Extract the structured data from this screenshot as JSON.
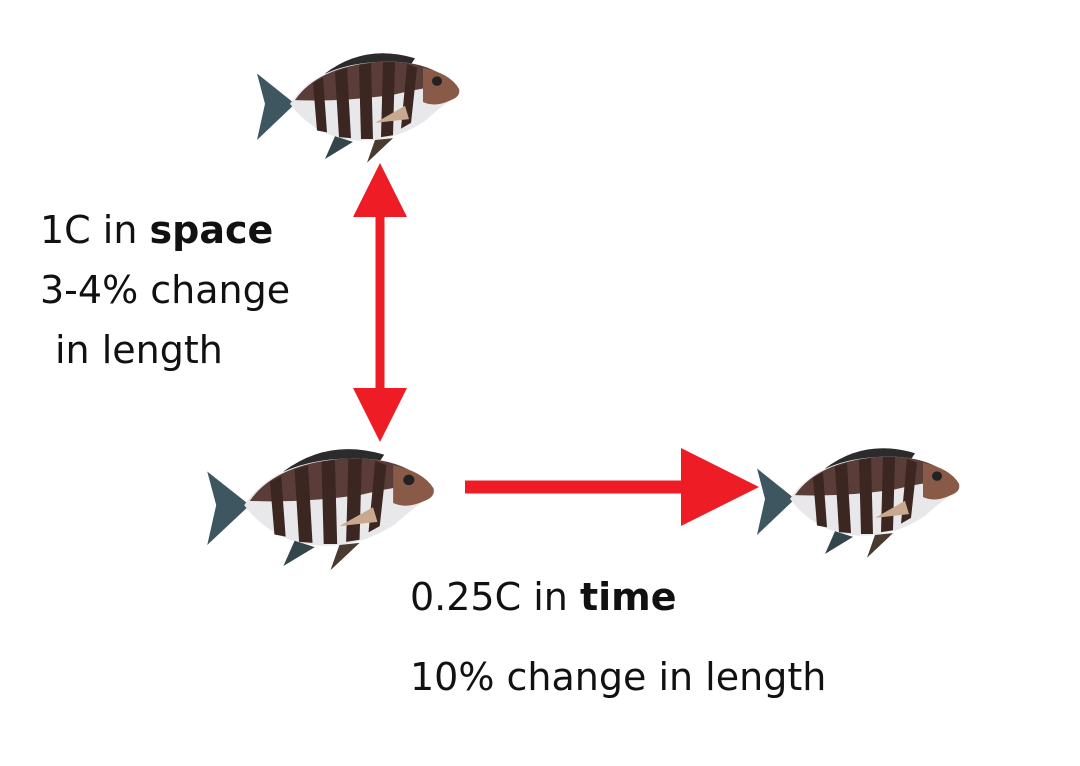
{
  "space_label": {
    "prefix": "1C in",
    "emphasis": "space",
    "lines": [
      "3-4% change",
      "in length"
    ]
  },
  "time_label": {
    "prefix": "0.25C in",
    "emphasis": "time",
    "line": "10% change in length"
  }
}
